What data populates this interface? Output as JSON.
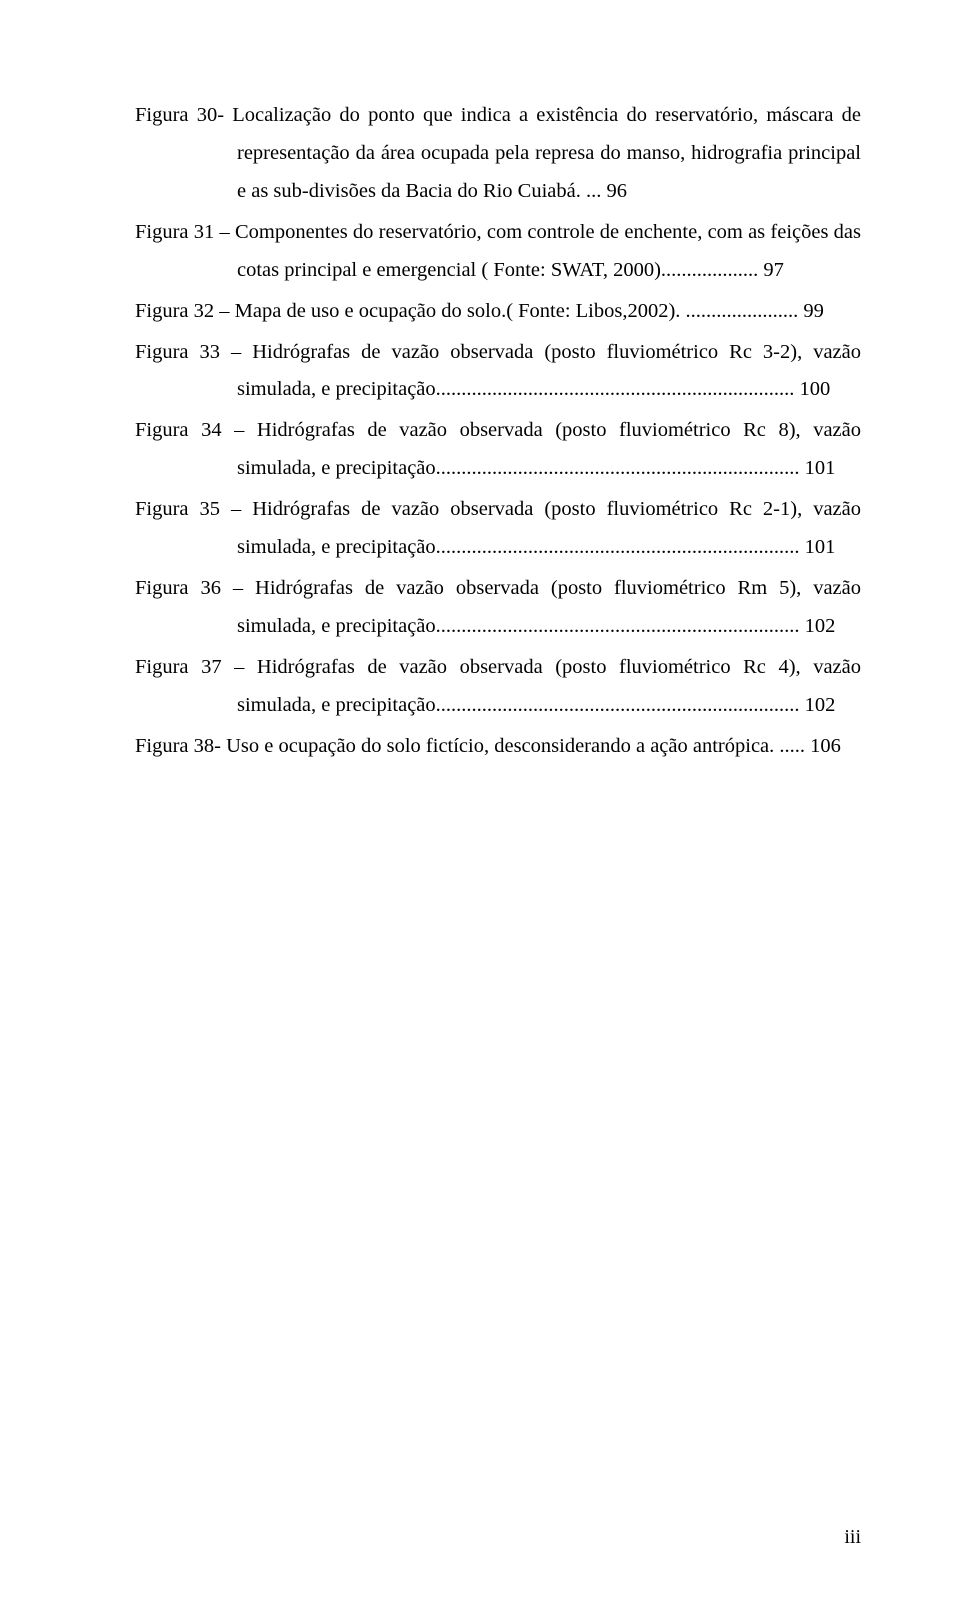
{
  "entries": [
    {
      "text": "Figura 30- Localização do ponto que indica a existência do reservatório, máscara de representação da área ocupada pela represa do manso, hidrografia principal e as sub-divisões da Bacia do Rio Cuiabá. ... 96"
    },
    {
      "text": "Figura 31 – Componentes do reservatório, com controle de enchente, com as feições das cotas principal e emergencial ( Fonte: SWAT, 2000)................... 97"
    },
    {
      "text": "Figura 32 – Mapa de uso e ocupação do solo.( Fonte: Libos,2002). ...................... 99"
    },
    {
      "text": "Figura 33 – Hidrógrafas de vazão observada (posto fluviométrico Rc 3-2), vazão simulada, e precipitação...................................................................... 100"
    },
    {
      "text": "Figura 34 – Hidrógrafas de vazão observada (posto fluviométrico Rc 8), vazão simulada, e precipitação....................................................................... 101"
    },
    {
      "text": "Figura 35 –  Hidrógrafas de vazão observada (posto fluviométrico Rc 2-1), vazão simulada, e precipitação....................................................................... 101"
    },
    {
      "text": "Figura 36 – Hidrógrafas de vazão observada (posto fluviométrico Rm 5), vazão simulada, e precipitação....................................................................... 102"
    },
    {
      "text": "Figura 37 – Hidrógrafas de vazão observada (posto fluviométrico Rc 4), vazão simulada, e precipitação....................................................................... 102"
    },
    {
      "text": "Figura 38- Uso e ocupação do solo fictício, desconsiderando a ação antrópica. ..... 106"
    }
  ],
  "page_number": "iii"
}
